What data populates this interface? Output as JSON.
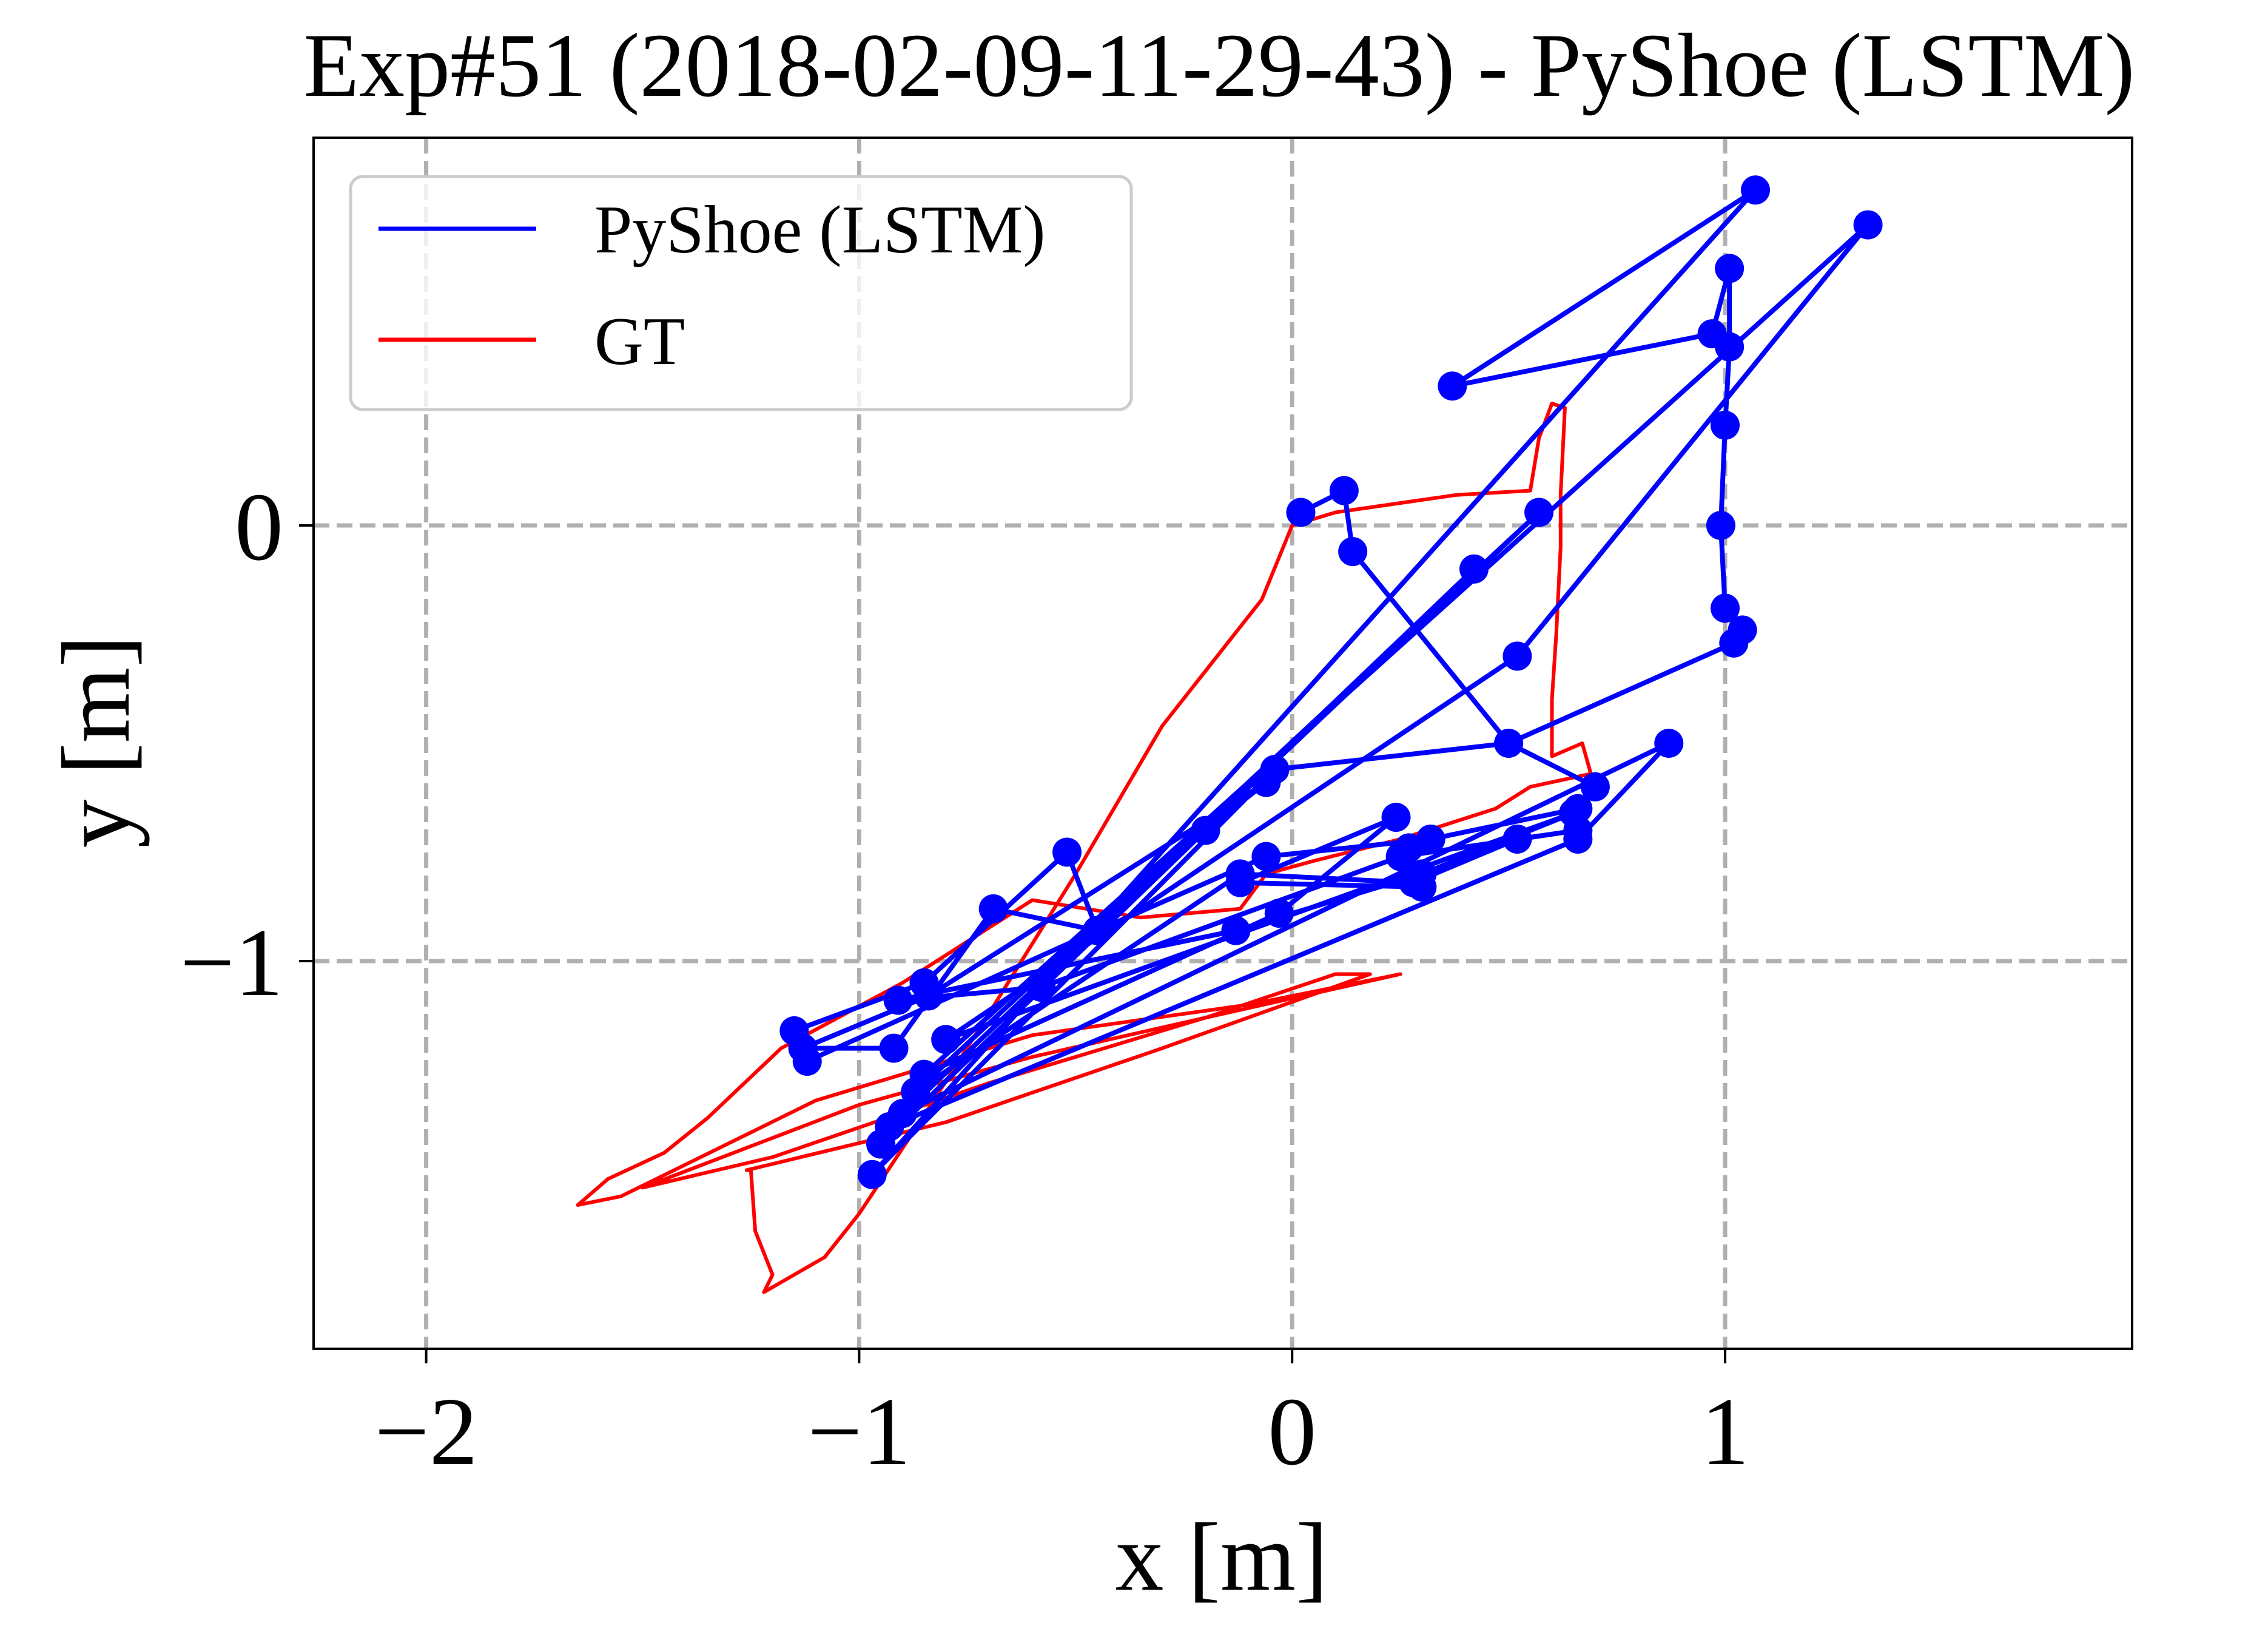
{
  "chart_data": {
    "type": "line",
    "title": "Exp#51 (2018-02-09-11-29-43) - PyShoe (LSTM)",
    "xlabel": "x [m]",
    "ylabel": "y [m]",
    "xlim": [
      -2.26,
      1.94
    ],
    "ylim": [
      -1.89,
      0.89
    ],
    "xticks": [
      -2,
      -1,
      0,
      1
    ],
    "xtick_labels": [
      "−2",
      "−1",
      "0",
      "1"
    ],
    "yticks": [
      0,
      -1
    ],
    "ytick_labels": [
      "0",
      "−1"
    ],
    "grid": true,
    "legend": {
      "position": "top-left",
      "entries": [
        "PyShoe (LSTM)",
        "GT"
      ]
    },
    "series": [
      {
        "name": "PyShoe (LSTM)",
        "color": "#0000ff",
        "markers": true,
        "points": [
          [
            0.02,
            0.03
          ],
          [
            0.12,
            0.08
          ],
          [
            0.14,
            -0.06
          ],
          [
            0.5,
            -0.5
          ],
          [
            1.02,
            -0.27
          ],
          [
            1.04,
            -0.24
          ],
          [
            1.0,
            -0.19
          ],
          [
            0.99,
            0.0
          ],
          [
            1.0,
            0.23
          ],
          [
            1.01,
            0.41
          ],
          [
            1.01,
            0.59
          ],
          [
            0.97,
            0.44
          ],
          [
            0.37,
            0.32
          ],
          [
            1.07,
            0.77
          ],
          [
            -0.97,
            -1.49
          ],
          [
            -0.04,
            -0.56
          ],
          [
            0.5,
            -0.5
          ],
          [
            0.7,
            -0.6
          ],
          [
            0.66,
            -0.65
          ],
          [
            0.32,
            -0.72
          ],
          [
            -0.06,
            -0.76
          ],
          [
            -0.45,
            -0.93
          ],
          [
            -1.12,
            -1.23
          ],
          [
            -1.15,
            -1.16
          ],
          [
            -0.85,
            -1.05
          ],
          [
            -0.52,
            -0.75
          ],
          [
            -0.45,
            -0.93
          ],
          [
            -0.69,
            -0.88
          ],
          [
            -0.92,
            -1.2
          ],
          [
            -1.13,
            -1.2
          ],
          [
            -0.84,
            -1.08
          ],
          [
            -0.06,
            -0.59
          ],
          [
            -0.2,
            -0.7
          ],
          [
            -0.95,
            -1.42
          ],
          [
            -0.95,
            -1.42
          ],
          [
            0.42,
            -0.1
          ],
          [
            -0.93,
            -1.38
          ],
          [
            0.66,
            -0.72
          ],
          [
            0.87,
            -0.5
          ],
          [
            -0.9,
            -1.35
          ],
          [
            0.57,
            0.03
          ],
          [
            -0.87,
            -1.3
          ],
          [
            -0.12,
            -0.8
          ],
          [
            0.28,
            -0.82
          ],
          [
            0.52,
            -0.72
          ],
          [
            0.66,
            -0.7
          ],
          [
            0.25,
            -0.76
          ],
          [
            -0.58,
            -1.06
          ],
          [
            -0.91,
            -1.09
          ],
          [
            -0.13,
            -0.93
          ],
          [
            0.3,
            -0.8
          ],
          [
            0.65,
            -0.66
          ],
          [
            -0.8,
            -1.18
          ],
          [
            0.52,
            -0.3
          ],
          [
            1.33,
            0.69
          ],
          [
            -0.85,
            -1.26
          ],
          [
            -0.03,
            -0.89
          ],
          [
            0.24,
            -0.67
          ],
          [
            -0.12,
            -0.82
          ],
          [
            0.3,
            -0.83
          ],
          [
            0.27,
            -0.74
          ]
        ]
      },
      {
        "name": "GT",
        "color": "#ff0000",
        "markers": false,
        "points": [
          [
            -1.22,
            -1.76
          ],
          [
            -1.08,
            -1.68
          ],
          [
            -1.0,
            -1.58
          ],
          [
            -0.86,
            -1.37
          ],
          [
            -0.7,
            -1.12
          ],
          [
            -0.5,
            -0.8
          ],
          [
            -0.3,
            -0.46
          ],
          [
            -0.07,
            -0.17
          ],
          [
            0.0,
            0.0
          ],
          [
            0.1,
            0.03
          ],
          [
            0.38,
            0.07
          ],
          [
            0.55,
            0.08
          ],
          [
            0.57,
            0.2
          ],
          [
            0.6,
            0.28
          ],
          [
            0.63,
            0.27
          ],
          [
            0.62,
            0.07
          ],
          [
            0.62,
            -0.05
          ],
          [
            0.61,
            -0.25
          ],
          [
            0.6,
            -0.4
          ],
          [
            0.6,
            -0.53
          ],
          [
            0.67,
            -0.5
          ],
          [
            0.69,
            -0.57
          ],
          [
            0.55,
            -0.6
          ],
          [
            0.47,
            -0.65
          ],
          [
            0.25,
            -0.72
          ],
          [
            0.05,
            -0.77
          ],
          [
            -0.06,
            -0.8
          ],
          [
            -0.12,
            -0.88
          ],
          [
            -0.35,
            -0.9
          ],
          [
            -0.6,
            -0.86
          ],
          [
            -0.9,
            -1.05
          ],
          [
            -1.18,
            -1.2
          ],
          [
            -1.35,
            -1.36
          ],
          [
            -1.45,
            -1.44
          ],
          [
            -1.58,
            -1.5
          ],
          [
            -1.65,
            -1.56
          ],
          [
            -1.55,
            -1.54
          ],
          [
            -1.1,
            -1.32
          ],
          [
            -0.6,
            -1.17
          ],
          [
            -0.1,
            -1.1
          ],
          [
            0.2,
            -1.04
          ],
          [
            0.25,
            -1.03
          ],
          [
            -0.2,
            -1.13
          ],
          [
            -0.6,
            -1.22
          ],
          [
            -1.0,
            -1.33
          ],
          [
            -1.5,
            -1.52
          ],
          [
            -1.2,
            -1.45
          ],
          [
            -0.7,
            -1.28
          ],
          [
            -0.2,
            -1.13
          ],
          [
            0.1,
            -1.03
          ],
          [
            0.18,
            -1.03
          ],
          [
            -0.3,
            -1.2
          ],
          [
            -0.8,
            -1.37
          ],
          [
            -1.26,
            -1.48
          ],
          [
            -1.25,
            -1.48
          ],
          [
            -1.24,
            -1.62
          ],
          [
            -1.2,
            -1.72
          ],
          [
            -1.22,
            -1.76
          ]
        ]
      }
    ]
  }
}
